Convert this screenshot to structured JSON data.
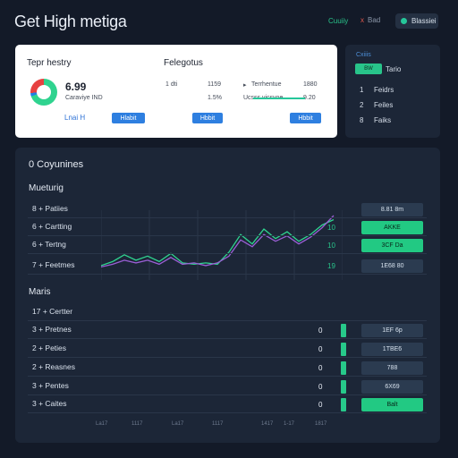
{
  "header": {
    "title": "Get High metiga",
    "link_label": "Cuuiiy",
    "close_label": "Bad",
    "close_icon": "x",
    "pill_label": "Blassiei"
  },
  "summary": {
    "left_heading": "Tepr hestry",
    "right_heading": "Felegotus",
    "value": "6.99",
    "sub1": "Caraviye IND",
    "sub2": "Ucsss vicsvoe",
    "link": "Lnai H",
    "btn1": "Hlabit",
    "btn2": "Hbbit",
    "btn3": "Hbbit",
    "col_a": "1 dti",
    "col_b1": "1159",
    "col_b2": "1.5%",
    "trend_label": "Terrhentue",
    "trend_icon": "trend-up",
    "trend_val1": "1880",
    "trend_val2": "9.20",
    "donut_colors": [
      "#e74141",
      "#2fd38f",
      "#1f7ee6"
    ]
  },
  "side": {
    "title": "Cxiiis",
    "active": "BW",
    "items": [
      {
        "num": "",
        "label": "Tario"
      },
      {
        "num": "1",
        "label": "Feidrs"
      },
      {
        "num": "2",
        "label": "Feiles"
      },
      {
        "num": "8",
        "label": "Faiks"
      }
    ]
  },
  "main": {
    "title": "0 Coyunines",
    "section1": "Mueturig",
    "section2": "Maris",
    "rows1": [
      {
        "label": "8 + Patiies",
        "val": "",
        "chip": "8.81 8m"
      },
      {
        "label": "6 + Cartting",
        "val": "10",
        "chip": "AKKE"
      },
      {
        "label": "6 + Tertng",
        "val": "10",
        "chip": "3CF Da"
      },
      {
        "label": "7 + Feetmes",
        "val": "19",
        "chip": "1E68 80"
      }
    ],
    "rows2": [
      {
        "label": "17 + Certter",
        "val": "",
        "chip": ""
      },
      {
        "label": "3 + Pretnes",
        "val": "0",
        "chip": "1EF 6p"
      },
      {
        "label": "2 + Peties",
        "val": "0",
        "chip": "1TBE6"
      },
      {
        "label": "2 + Reasnes",
        "val": "0",
        "chip": "788"
      },
      {
        "label": "3 + Pentes",
        "val": "0",
        "chip": "6X69"
      },
      {
        "label": "3 + Caites",
        "val": "0",
        "chip": "Balt"
      }
    ],
    "axis": [
      "La17",
      "1117",
      "La17",
      "1117",
      "1417",
      "1-17",
      "1817"
    ]
  },
  "chart_data": {
    "type": "line",
    "series": [
      {
        "color": "#2fd38f",
        "values": [
          8,
          11,
          16,
          12,
          15,
          11,
          17,
          10,
          9,
          10,
          9,
          18,
          31,
          24,
          35,
          28,
          33,
          26,
          31,
          38,
          42
        ]
      },
      {
        "color": "#9b5fd6",
        "values": [
          7,
          9,
          12,
          10,
          12,
          9,
          14,
          9,
          10,
          8,
          10,
          15,
          27,
          22,
          31,
          26,
          30,
          24,
          29,
          36,
          45
        ]
      }
    ],
    "grid": true
  }
}
